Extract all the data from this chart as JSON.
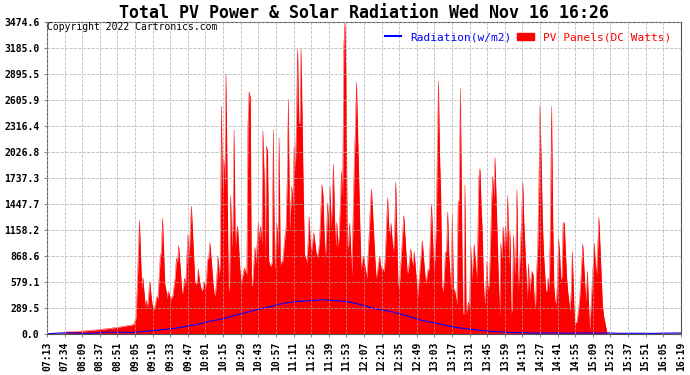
{
  "title": "Total PV Power & Solar Radiation Wed Nov 16 16:26",
  "copyright": "Copyright 2022 Cartronics.com",
  "legend_radiation": "Radiation(w/m2)",
  "legend_pv": "PV Panels(DC Watts)",
  "radiation_color": "blue",
  "pv_color": "red",
  "background_color": "#ffffff",
  "grid_color": "#aaaaaa",
  "y_ticks": [
    0.0,
    289.5,
    579.1,
    868.6,
    1158.2,
    1447.7,
    1737.3,
    2026.8,
    2316.4,
    2605.9,
    2895.5,
    3185.0,
    3474.6
  ],
  "ylim": [
    0.0,
    3474.6
  ],
  "x_tick_labels": [
    "07:13",
    "07:34",
    "08:09",
    "08:37",
    "08:51",
    "09:05",
    "09:19",
    "09:33",
    "09:47",
    "10:01",
    "10:15",
    "10:29",
    "10:43",
    "10:57",
    "11:11",
    "11:25",
    "11:39",
    "11:53",
    "12:07",
    "12:21",
    "12:35",
    "12:49",
    "13:03",
    "13:17",
    "13:31",
    "13:45",
    "13:59",
    "14:13",
    "14:27",
    "14:41",
    "14:55",
    "15:09",
    "15:23",
    "15:37",
    "15:51",
    "16:05",
    "16:19"
  ],
  "title_fontsize": 12,
  "tick_fontsize": 7,
  "legend_fontsize": 8,
  "copyright_fontsize": 7
}
